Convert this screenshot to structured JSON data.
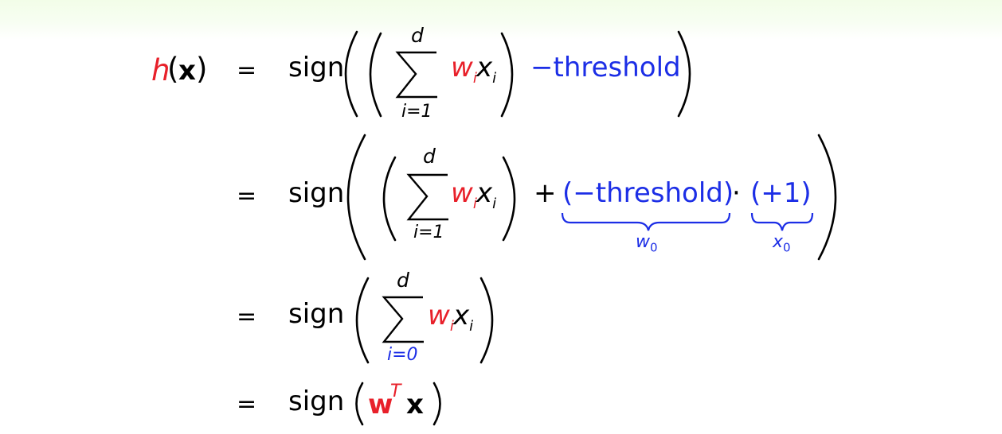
{
  "colors": {
    "emphasis_red": "#e8202a",
    "emphasis_blue": "#1c2ee6",
    "header_band": "#f2fde8"
  },
  "derivation": {
    "lhs": {
      "func": "h",
      "open": "(",
      "arg": "x",
      "close": ")"
    },
    "equals": "=",
    "sign": "sign",
    "sum_upper": "d",
    "sum_lower_1": "i=1",
    "sum_lower_0": "i=0",
    "weight": "w",
    "input": "x",
    "index": "i",
    "line1": {
      "threshold_term": "−threshold"
    },
    "line2": {
      "plus": "+",
      "neg_threshold": "(−threshold)",
      "dot": "·",
      "plus_one": "(+1)",
      "w0_base": "w",
      "w0_sub": "0",
      "x0_base": "x",
      "x0_sub": "0"
    },
    "line4": {
      "vec_w": "w",
      "transpose": "T",
      "vec_x": "x"
    }
  }
}
